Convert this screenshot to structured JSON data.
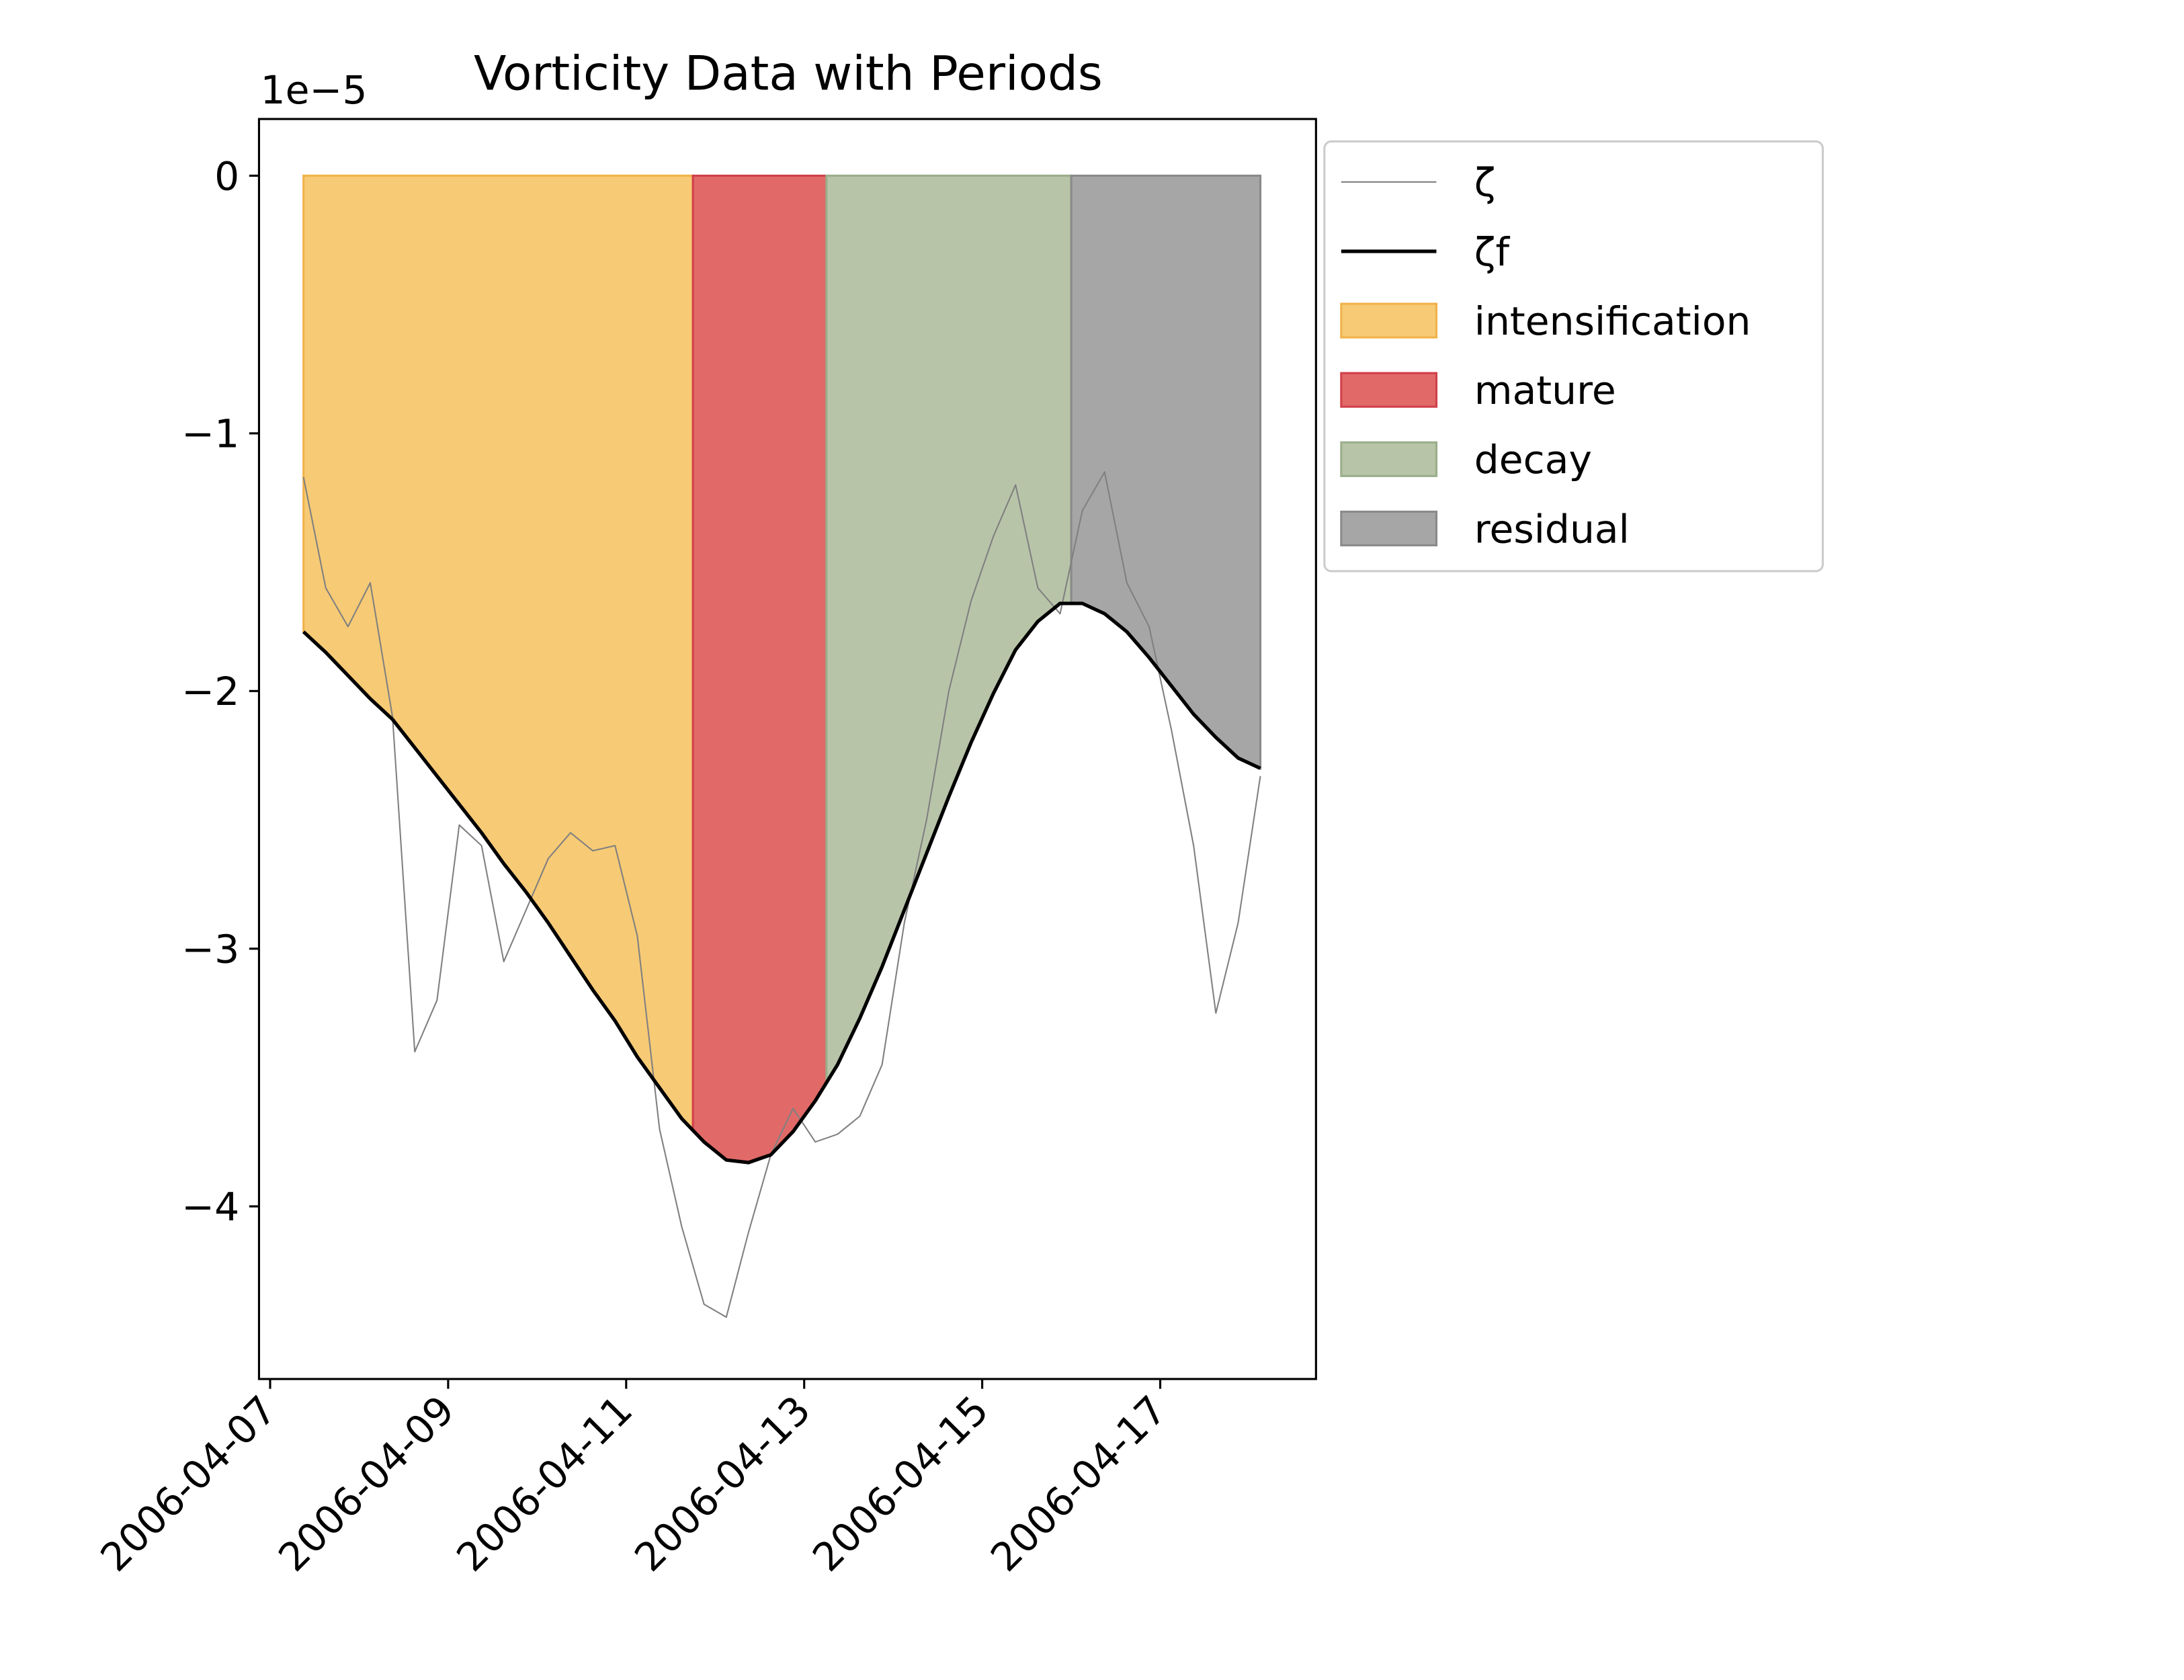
{
  "chart_data": {
    "type": "line",
    "title": "Vorticity Data with Periods",
    "offset_text": "1e−5",
    "x": [
      "2006-04-07 09:00",
      "2006-04-07 15:00",
      "2006-04-07 21:00",
      "2006-04-08 03:00",
      "2006-04-08 09:00",
      "2006-04-08 15:00",
      "2006-04-08 21:00",
      "2006-04-09 03:00",
      "2006-04-09 09:00",
      "2006-04-09 15:00",
      "2006-04-09 21:00",
      "2006-04-10 03:00",
      "2006-04-10 09:00",
      "2006-04-10 15:00",
      "2006-04-10 21:00",
      "2006-04-11 03:00",
      "2006-04-11 09:00",
      "2006-04-11 15:00",
      "2006-04-11 21:00",
      "2006-04-12 03:00",
      "2006-04-12 09:00",
      "2006-04-12 15:00",
      "2006-04-12 21:00",
      "2006-04-13 03:00",
      "2006-04-13 09:00",
      "2006-04-13 15:00",
      "2006-04-13 21:00",
      "2006-04-14 03:00",
      "2006-04-14 09:00",
      "2006-04-14 15:00",
      "2006-04-14 21:00",
      "2006-04-15 03:00",
      "2006-04-15 09:00",
      "2006-04-15 15:00",
      "2006-04-15 21:00",
      "2006-04-16 03:00",
      "2006-04-16 09:00",
      "2006-04-16 15:00",
      "2006-04-16 21:00",
      "2006-04-17 03:00",
      "2006-04-17 09:00",
      "2006-04-17 15:00",
      "2006-04-17 21:00",
      "2006-04-18 03:00"
    ],
    "series": [
      {
        "name": "ζ",
        "color": "#808080",
        "width": 1,
        "values": [
          -1.17,
          -1.6,
          -1.75,
          -1.58,
          -2.1,
          -3.4,
          -3.2,
          -2.52,
          -2.6,
          -3.05,
          -2.85,
          -2.65,
          -2.55,
          -2.62,
          -2.6,
          -2.95,
          -3.7,
          -4.08,
          -4.38,
          -4.43,
          -4.1,
          -3.8,
          -3.62,
          -3.75,
          -3.72,
          -3.65,
          -3.45,
          -2.9,
          -2.5,
          -2.0,
          -1.65,
          -1.4,
          -1.2,
          -1.6,
          -1.7,
          -1.3,
          -1.15,
          -1.58,
          -1.75,
          -2.15,
          -2.6,
          -3.25,
          -2.9,
          -2.33
        ]
      },
      {
        "name": "ζf",
        "color": "#000000",
        "width": 2.5,
        "values": [
          -1.77,
          -1.85,
          -1.94,
          -2.03,
          -2.11,
          -2.22,
          -2.33,
          -2.44,
          -2.55,
          -2.67,
          -2.78,
          -2.9,
          -3.03,
          -3.16,
          -3.28,
          -3.42,
          -3.54,
          -3.66,
          -3.75,
          -3.82,
          -3.83,
          -3.8,
          -3.71,
          -3.59,
          -3.45,
          -3.27,
          -3.07,
          -2.85,
          -2.63,
          -2.41,
          -2.2,
          -2.01,
          -1.84,
          -1.73,
          -1.66,
          -1.66,
          -1.7,
          -1.77,
          -1.87,
          -1.98,
          -2.09,
          -2.18,
          -2.26,
          -2.3
        ]
      }
    ],
    "periods": [
      {
        "name": "intensification",
        "color": "#f7ca75",
        "edge": "#f0b24a",
        "start": "2006-04-07 09:00",
        "end": "2006-04-11 18:00"
      },
      {
        "name": "mature",
        "color": "#e16a68",
        "edge": "#d0404a",
        "start": "2006-04-11 18:00",
        "end": "2006-04-13 06:00"
      },
      {
        "name": "decay",
        "color": "#b8c4a8",
        "edge": "#9aae8a",
        "start": "2006-04-13 06:00",
        "end": "2006-04-16 00:00"
      },
      {
        "name": "residual",
        "color": "#a6a6a6",
        "edge": "#8a8a8a",
        "start": "2006-04-16 00:00",
        "end": "2006-04-18 03:00"
      }
    ],
    "xlim": [
      "2006-04-06 21:00",
      "2006-04-18 18:00"
    ],
    "xticks": [
      "2006-04-07",
      "2006-04-09",
      "2006-04-11",
      "2006-04-13",
      "2006-04-15",
      "2006-04-17"
    ],
    "ylim": [
      -4.67,
      0.22
    ],
    "yticks": [
      0,
      -1,
      -2,
      -3,
      -4
    ],
    "grid": false,
    "legend": "outside right"
  }
}
